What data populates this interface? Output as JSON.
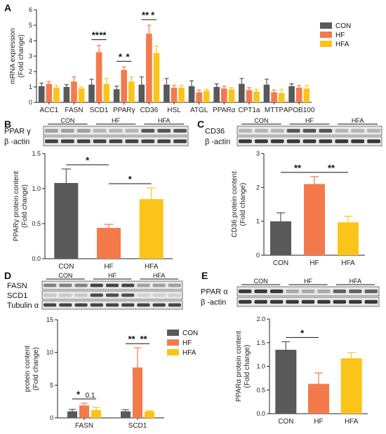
{
  "colors": {
    "CON": "#595959",
    "HF": "#f47a4c",
    "HFA": "#fcc419"
  },
  "legend": [
    "CON",
    "HF",
    "HFA"
  ],
  "panel_labels": [
    "A",
    "B",
    "C",
    "D",
    "E"
  ],
  "blots": {
    "B": {
      "rows": [
        "PPAR γ",
        "β -actin"
      ],
      "groups": [
        "CON",
        "HF",
        "HFA"
      ]
    },
    "C": {
      "rows": [
        "CD36",
        "β -actin"
      ],
      "groups": [
        "CON",
        "HF",
        "HFA"
      ]
    },
    "D": {
      "rows": [
        "FASN",
        "SCD1",
        "Tubulin α"
      ],
      "groups": [
        "CON",
        "HF",
        "HFA"
      ]
    },
    "E": {
      "rows": [
        "PPAR α",
        "β -actin"
      ],
      "groups": [
        "CON",
        "HF",
        "HFA"
      ]
    }
  },
  "chart_data": [
    {
      "panel": "A",
      "type": "bar",
      "ylabel": "mRNA expression (Fold change)",
      "ylim": [
        0,
        6
      ],
      "yticks": [
        0,
        1,
        2,
        3,
        4,
        5,
        6
      ],
      "categories": [
        "ACC1",
        "FASN",
        "SCD1",
        "PPARγ",
        "CD36",
        "HSL",
        "ATGL",
        "PPARα",
        "CPT1a",
        "MTTP",
        "APOB100"
      ],
      "series": [
        {
          "name": "CON",
          "values": [
            1.05,
            1.0,
            1.15,
            0.85,
            1.15,
            1.15,
            1.05,
            1.0,
            1.2,
            1.15,
            1.05
          ],
          "errors": [
            0.2,
            0.15,
            0.35,
            0.2,
            0.5,
            0.4,
            0.35,
            0.2,
            0.35,
            0.35,
            0.15
          ]
        },
        {
          "name": "HF",
          "values": [
            1.2,
            1.35,
            3.25,
            2.1,
            4.45,
            0.95,
            0.65,
            0.9,
            0.8,
            0.65,
            0.95
          ],
          "errors": [
            0.15,
            0.3,
            0.45,
            0.2,
            0.55,
            0.15,
            0.15,
            0.15,
            0.15,
            0.15,
            0.15
          ]
        },
        {
          "name": "HFA",
          "values": [
            0.95,
            0.9,
            1.2,
            1.35,
            3.2,
            0.95,
            0.75,
            0.85,
            0.7,
            0.6,
            0.9
          ],
          "errors": [
            0.15,
            0.1,
            0.35,
            0.3,
            0.45,
            0.15,
            0.1,
            0.1,
            0.15,
            0.25,
            0.2
          ]
        }
      ],
      "annotations": [
        {
          "cat": 2,
          "from": 0,
          "to": 1,
          "text": "**"
        },
        {
          "cat": 2,
          "from": 1,
          "to": 2,
          "text": "**"
        },
        {
          "cat": 3,
          "from": 0,
          "to": 1,
          "text": "*"
        },
        {
          "cat": 3,
          "from": 1,
          "to": 2,
          "text": "*"
        },
        {
          "cat": 4,
          "from": 0,
          "to": 1,
          "text": "**"
        },
        {
          "cat": 4,
          "from": 1,
          "to": 2,
          "text": "*"
        }
      ]
    },
    {
      "panel": "B",
      "type": "bar",
      "ylabel": "PPARγ protein content (Fold change)",
      "ylim": [
        0,
        1.5
      ],
      "yticks": [
        0.0,
        0.5,
        1.0,
        1.5
      ],
      "categories": [
        "CON",
        "HF",
        "HFA"
      ],
      "values": [
        1.08,
        0.44,
        0.85
      ],
      "errors": [
        0.2,
        0.05,
        0.16
      ],
      "annotations": [
        {
          "from": 0,
          "to": 1,
          "text": "*"
        },
        {
          "from": 1,
          "to": 2,
          "text": "*"
        }
      ]
    },
    {
      "panel": "C",
      "type": "bar",
      "ylabel": "CD36 protein content (Fold change)",
      "ylim": [
        0,
        3
      ],
      "yticks": [
        0,
        1,
        2,
        3
      ],
      "categories": [
        "CON",
        "HF",
        "HFA"
      ],
      "values": [
        1.0,
        2.1,
        0.97
      ],
      "errors": [
        0.25,
        0.22,
        0.18
      ],
      "annotations": [
        {
          "from": 0,
          "to": 1,
          "text": "**"
        },
        {
          "from": 1,
          "to": 2,
          "text": "**"
        }
      ]
    },
    {
      "panel": "D",
      "type": "bar",
      "ylabel": "protein content (Fold change)",
      "ylim": [
        0,
        15
      ],
      "yticks": [
        0,
        5,
        10,
        15
      ],
      "categories": [
        "FASN",
        "SCD1"
      ],
      "series": [
        {
          "name": "CON",
          "values": [
            1.0,
            1.0
          ],
          "errors": [
            0.3,
            0.25
          ]
        },
        {
          "name": "HF",
          "values": [
            1.9,
            7.7
          ],
          "errors": [
            0.35,
            3.0
          ]
        },
        {
          "name": "HFA",
          "values": [
            1.2,
            1.0
          ],
          "errors": [
            0.4,
            0.1
          ]
        }
      ],
      "annotations": [
        {
          "cat": 0,
          "from": 0,
          "to": 1,
          "text": "*"
        },
        {
          "cat": 0,
          "from": 1,
          "to": 2,
          "text": "0.1"
        },
        {
          "cat": 1,
          "from": 0,
          "to": 1,
          "text": "**"
        },
        {
          "cat": 1,
          "from": 1,
          "to": 2,
          "text": "**"
        }
      ]
    },
    {
      "panel": "E",
      "type": "bar",
      "ylabel": "PPARα protein content (Fold change)",
      "ylim": [
        0,
        2.0
      ],
      "yticks": [
        0.0,
        0.5,
        1.0,
        1.5,
        2.0
      ],
      "categories": [
        "CON",
        "HF",
        "HFA"
      ],
      "values": [
        1.35,
        0.63,
        1.17
      ],
      "errors": [
        0.17,
        0.23,
        0.12
      ],
      "annotations": [
        {
          "from": 0,
          "to": 1,
          "text": "*"
        }
      ]
    }
  ]
}
